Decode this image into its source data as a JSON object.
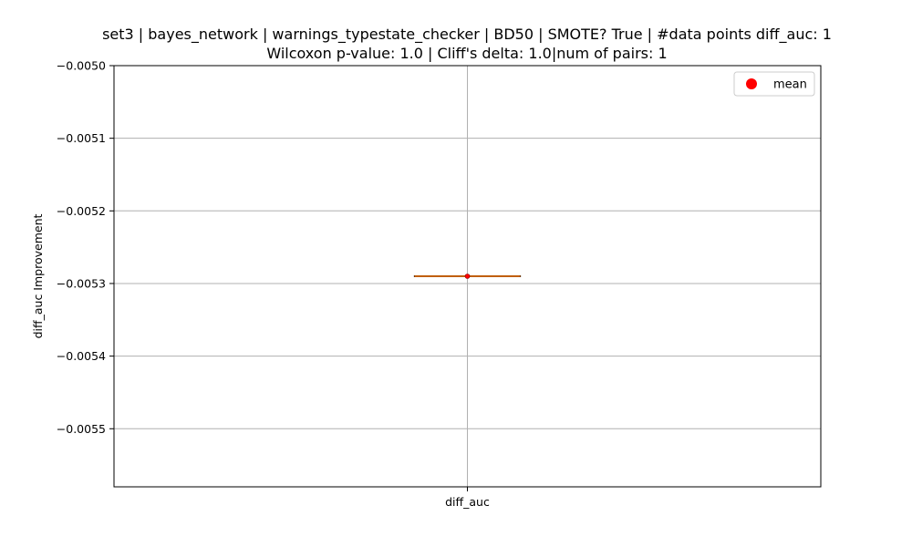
{
  "chart_data": {
    "type": "box",
    "title_lines": [
      "set3 | bayes_network | warnings_typestate_checker | BD50 | SMOTE? True | #data points diff_auc: 1",
      "Wilcoxon p-value: 1.0 | Cliff's delta: 1.0|num of pairs: 1"
    ],
    "xlabel": "",
    "ylabel": "diff_auc Improvement",
    "categories": [
      "diff_auc"
    ],
    "ylim": [
      -0.00558,
      -0.005
    ],
    "yticks": [
      -0.005,
      -0.0051,
      -0.0052,
      -0.0053,
      -0.0054,
      -0.0055
    ],
    "ytick_labels": [
      "−0.0050",
      "−0.0051",
      "−0.0052",
      "−0.0053",
      "−0.0054",
      "−0.0055"
    ],
    "grid": true,
    "series": [
      {
        "name": "diff_auc",
        "values": [
          -0.00529
        ],
        "median": -0.00529,
        "q1": -0.00529,
        "q3": -0.00529,
        "whisker_low": -0.00529,
        "whisker_high": -0.00529,
        "mean": -0.00529
      }
    ],
    "legend": {
      "position": "top-right",
      "entries": [
        "mean"
      ]
    },
    "colors": {
      "median": "#ff7f0e",
      "box": "#000000",
      "mean_marker": "#ff0000",
      "grid": "#b0b0b0"
    }
  }
}
